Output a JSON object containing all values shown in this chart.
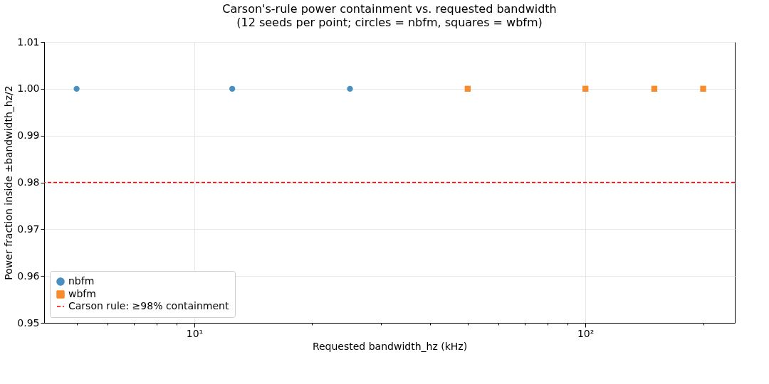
{
  "chart_data": {
    "type": "scatter",
    "title": "Carson's-rule power containment vs. requested bandwidth",
    "subtitle": "(12 seeds per point; circles = nbfm, squares = wbfm)",
    "xlabel": "Requested bandwidth_hz (kHz)",
    "ylabel": "Power fraction inside ±bandwidth_hz/2",
    "log": "x",
    "grid": true,
    "legend": "bottom left",
    "xlim": [
      4.13,
      241
    ],
    "ylim": [
      0.95,
      1.01
    ],
    "xticks": [
      {
        "value": 5,
        "label": null
      },
      {
        "value": 6,
        "label": null
      },
      {
        "value": 7,
        "label": null
      },
      {
        "value": 8,
        "label": null
      },
      {
        "value": 9,
        "label": null
      },
      {
        "value": 10,
        "label": "10¹"
      },
      {
        "value": 20,
        "label": null
      },
      {
        "value": 30,
        "label": null
      },
      {
        "value": 40,
        "label": null
      },
      {
        "value": 50,
        "label": null
      },
      {
        "value": 60,
        "label": null
      },
      {
        "value": 70,
        "label": null
      },
      {
        "value": 80,
        "label": null
      },
      {
        "value": 90,
        "label": null
      },
      {
        "value": 100,
        "label": "10²"
      },
      {
        "value": 200,
        "label": null
      }
    ],
    "yticks": [
      0.95,
      0.96,
      0.97,
      0.98,
      0.99,
      {
        "value": 1,
        "label": "1.00"
      },
      1.01
    ],
    "series": [
      {
        "name": "nbfm",
        "color": "#4a8fc2",
        "marker": "circle",
        "x": [
          5,
          12.5,
          25
        ],
        "values": [
          1,
          1,
          1
        ]
      },
      {
        "name": "wbfm",
        "color": "#f98c2a",
        "marker": "square",
        "x": [
          50,
          100,
          150,
          200
        ],
        "values": [
          1,
          1,
          1,
          1
        ]
      }
    ],
    "ref_lines": [
      {
        "axis": "y",
        "value": 0.98,
        "label": "Carson rule: ≥98% containment",
        "color": "#ff0000",
        "line_style": "dashed"
      }
    ]
  }
}
